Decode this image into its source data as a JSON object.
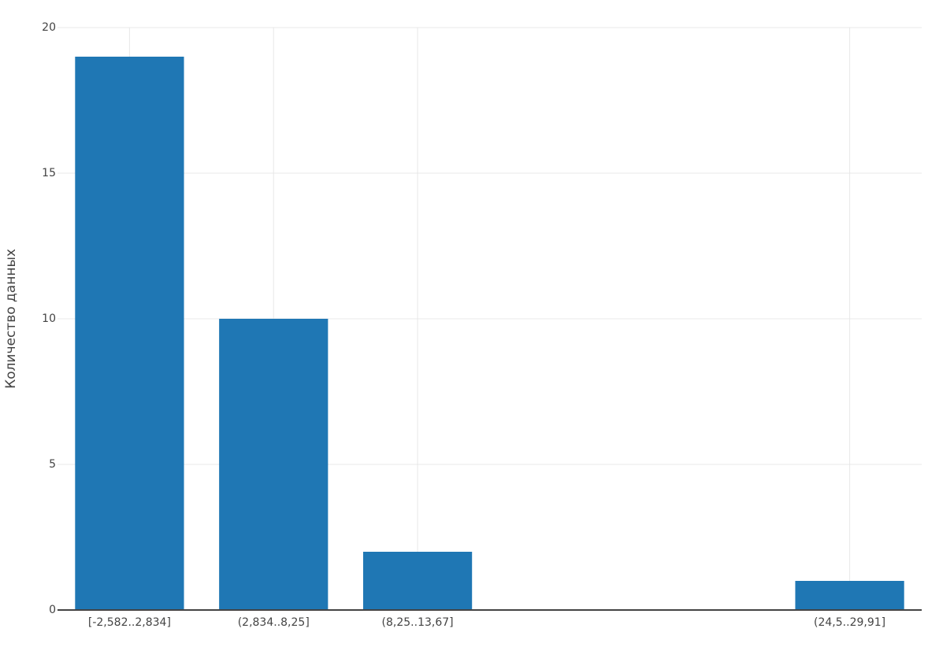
{
  "chart_data": {
    "type": "bar",
    "y_label": "Количество данных",
    "categories": [
      "[-2,582..2,834]",
      "(2,834..8,25]",
      "(8,25..13,67]",
      null,
      null,
      "(24,5..29,91]"
    ],
    "values": [
      19,
      10,
      2,
      0,
      0,
      1
    ],
    "color": "#1f77b4",
    "ylim": [
      0,
      20
    ],
    "yticks": [
      0,
      5,
      10,
      15,
      20
    ],
    "grid": true
  }
}
